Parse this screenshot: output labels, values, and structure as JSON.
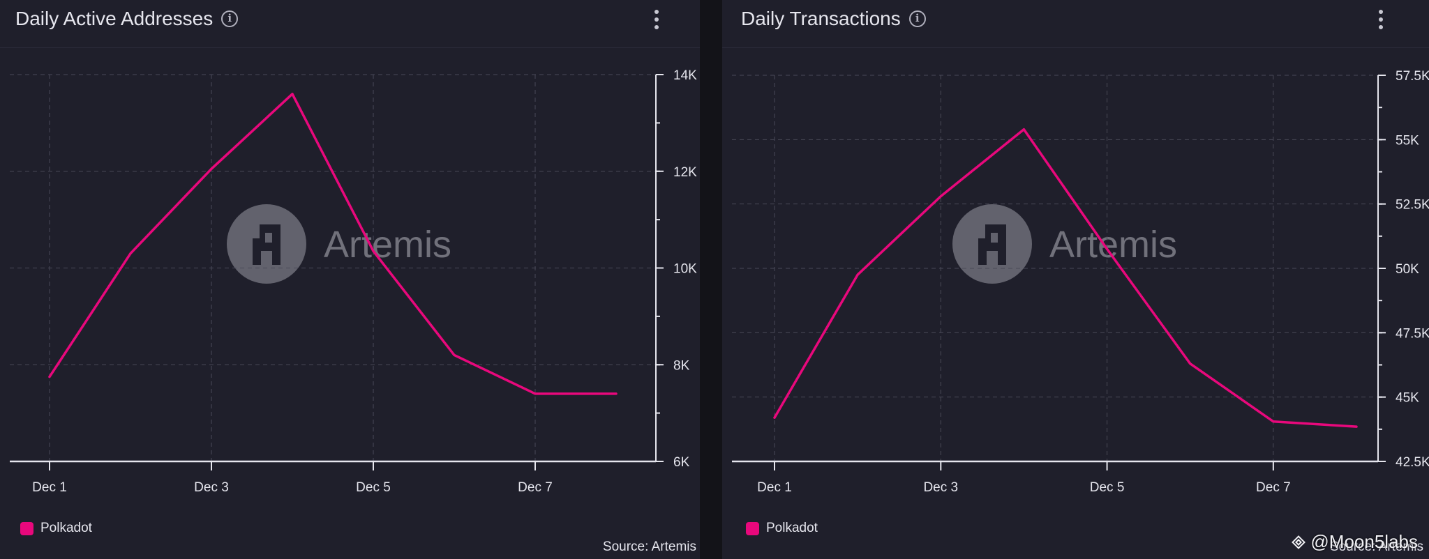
{
  "colors": {
    "series": "#e8087c",
    "background": "#1f1f2b",
    "grid": "#4a4a58",
    "text": "#e6e6ee",
    "watermark": "#7a7a84"
  },
  "watermark": {
    "text": "Artemis",
    "icon": "artemis-logo-icon"
  },
  "credit": "@Moon5labs",
  "panels": [
    {
      "title": "Daily Active Addresses",
      "source": "Source: Artemis",
      "legend": "Polkadot",
      "chart_data": {
        "type": "line",
        "title": "Daily Active Addresses",
        "xlabel": "",
        "ylabel": "",
        "x": [
          "Dec 1",
          "Dec 2",
          "Dec 3",
          "Dec 4",
          "Dec 5",
          "Dec 6",
          "Dec 7",
          "Dec 8"
        ],
        "x_tick_labels": [
          "Dec 1",
          "Dec 3",
          "Dec 5",
          "Dec 7"
        ],
        "ylim": [
          6000,
          14000
        ],
        "y_ticks": [
          6000,
          8000,
          10000,
          12000,
          14000
        ],
        "y_tick_labels": [
          "6K",
          "8K",
          "10K",
          "12K",
          "14K"
        ],
        "y_minor_step": 1000,
        "y_axis_position": "right",
        "grid": true,
        "legend_position": "bottom-left",
        "series": [
          {
            "name": "Polkadot",
            "values": [
              7750,
              10300,
              12050,
              13600,
              10350,
              8200,
              7400,
              7400
            ]
          }
        ]
      }
    },
    {
      "title": "Daily Transactions",
      "source": "Source: Artemis",
      "legend": "Polkadot",
      "chart_data": {
        "type": "line",
        "title": "Daily Transactions",
        "xlabel": "",
        "ylabel": "",
        "x": [
          "Dec 1",
          "Dec 2",
          "Dec 3",
          "Dec 4",
          "Dec 5",
          "Dec 6",
          "Dec 7",
          "Dec 8"
        ],
        "x_tick_labels": [
          "Dec 1",
          "Dec 3",
          "Dec 5",
          "Dec 7"
        ],
        "ylim": [
          42500,
          57500
        ],
        "y_ticks": [
          42500,
          45000,
          47500,
          50000,
          52500,
          55000,
          57500
        ],
        "y_tick_labels": [
          "42.5K",
          "45K",
          "47.5K",
          "50K",
          "52.5K",
          "55K",
          "57.5K"
        ],
        "y_minor_step": 1250,
        "y_axis_position": "right",
        "grid": true,
        "legend_position": "bottom-left",
        "series": [
          {
            "name": "Polkadot",
            "values": [
              44200,
              49750,
              52800,
              55400,
              50750,
              46300,
              44050,
              43850
            ]
          }
        ]
      }
    }
  ]
}
